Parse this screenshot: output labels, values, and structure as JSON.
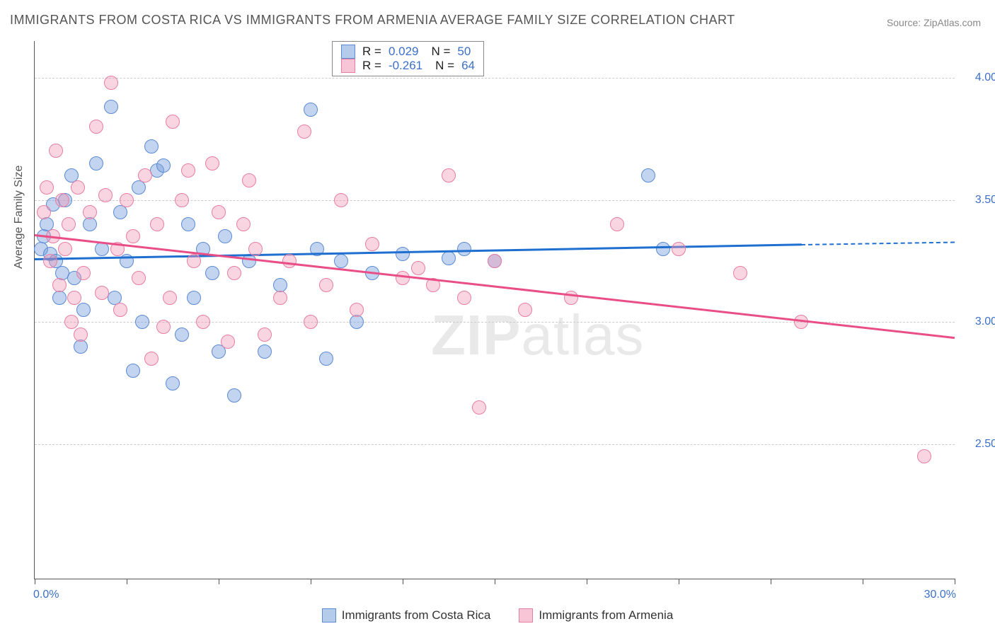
{
  "title": "IMMIGRANTS FROM COSTA RICA VS IMMIGRANTS FROM ARMENIA AVERAGE FAMILY SIZE CORRELATION CHART",
  "source": "Source: ZipAtlas.com",
  "watermark": "ZIPatlas",
  "y_axis_label": "Average Family Size",
  "chart": {
    "type": "scatter",
    "xlim": [
      0,
      30
    ],
    "ylim": [
      1.95,
      4.15
    ],
    "x_range_labels": {
      "min": "0.0%",
      "max": "30.0%"
    },
    "y_ticks": [
      2.5,
      3.0,
      3.5,
      4.0
    ],
    "x_tick_positions_pct": [
      0,
      10,
      20,
      30,
      40,
      50,
      60,
      70,
      80,
      90,
      100
    ],
    "grid_color": "#cccccc",
    "background_color": "#ffffff",
    "axis_color": "#555555",
    "tick_label_color": "#3b6fc9",
    "series": [
      {
        "name": "Immigrants from Costa Rica",
        "key": "costa_rica",
        "color_fill": "rgba(120,160,220,0.45)",
        "color_stroke": "#5b8bd4",
        "trend_color": "#1f6fd0",
        "R": "0.029",
        "N": "50",
        "trend": {
          "x1": 0,
          "y1": 3.26,
          "x2_solid": 25,
          "y2_solid": 3.32,
          "x2_dash": 30,
          "y2_dash": 3.33
        },
        "points": [
          [
            0.2,
            3.3
          ],
          [
            0.3,
            3.35
          ],
          [
            0.4,
            3.4
          ],
          [
            0.5,
            3.28
          ],
          [
            0.6,
            3.48
          ],
          [
            0.7,
            3.25
          ],
          [
            0.8,
            3.1
          ],
          [
            0.9,
            3.2
          ],
          [
            1.0,
            3.5
          ],
          [
            1.2,
            3.6
          ],
          [
            1.3,
            3.18
          ],
          [
            1.5,
            2.9
          ],
          [
            1.6,
            3.05
          ],
          [
            1.8,
            3.4
          ],
          [
            2.0,
            3.65
          ],
          [
            2.2,
            3.3
          ],
          [
            2.5,
            3.88
          ],
          [
            2.6,
            3.1
          ],
          [
            2.8,
            3.45
          ],
          [
            3.0,
            3.25
          ],
          [
            3.2,
            2.8
          ],
          [
            3.4,
            3.55
          ],
          [
            3.5,
            3.0
          ],
          [
            3.8,
            3.72
          ],
          [
            4.0,
            3.62
          ],
          [
            4.2,
            3.64
          ],
          [
            4.5,
            2.75
          ],
          [
            4.8,
            2.95
          ],
          [
            5.0,
            3.4
          ],
          [
            5.2,
            3.1
          ],
          [
            5.5,
            3.3
          ],
          [
            5.8,
            3.2
          ],
          [
            6.0,
            2.88
          ],
          [
            6.2,
            3.35
          ],
          [
            6.5,
            2.7
          ],
          [
            7.0,
            3.25
          ],
          [
            7.5,
            2.88
          ],
          [
            8.0,
            3.15
          ],
          [
            9.0,
            3.87
          ],
          [
            9.2,
            3.3
          ],
          [
            9.5,
            2.85
          ],
          [
            10.0,
            3.25
          ],
          [
            10.5,
            3.0
          ],
          [
            11.0,
            3.2
          ],
          [
            12.0,
            3.28
          ],
          [
            13.5,
            3.26
          ],
          [
            14.0,
            3.3
          ],
          [
            15.0,
            3.25
          ],
          [
            20.0,
            3.6
          ],
          [
            20.5,
            3.3
          ]
        ]
      },
      {
        "name": "Immigrants from Armenia",
        "key": "armenia",
        "color_fill": "rgba(240,150,180,0.40)",
        "color_stroke": "#e87da4",
        "trend_color": "#e94f86",
        "R": "-0.261",
        "N": "64",
        "trend": {
          "x1": 0,
          "y1": 3.36,
          "x2_solid": 30,
          "y2_solid": 2.94
        },
        "points": [
          [
            0.3,
            3.45
          ],
          [
            0.4,
            3.55
          ],
          [
            0.5,
            3.25
          ],
          [
            0.6,
            3.35
          ],
          [
            0.7,
            3.7
          ],
          [
            0.8,
            3.15
          ],
          [
            0.9,
            3.5
          ],
          [
            1.0,
            3.3
          ],
          [
            1.1,
            3.4
          ],
          [
            1.2,
            3.0
          ],
          [
            1.3,
            3.1
          ],
          [
            1.4,
            3.55
          ],
          [
            1.5,
            2.95
          ],
          [
            1.6,
            3.2
          ],
          [
            1.8,
            3.45
          ],
          [
            2.0,
            3.8
          ],
          [
            2.2,
            3.12
          ],
          [
            2.3,
            3.52
          ],
          [
            2.5,
            3.98
          ],
          [
            2.7,
            3.3
          ],
          [
            2.8,
            3.05
          ],
          [
            3.0,
            3.5
          ],
          [
            3.2,
            3.35
          ],
          [
            3.4,
            3.18
          ],
          [
            3.6,
            3.6
          ],
          [
            3.8,
            2.85
          ],
          [
            4.0,
            3.4
          ],
          [
            4.2,
            2.98
          ],
          [
            4.4,
            3.1
          ],
          [
            4.5,
            3.82
          ],
          [
            4.8,
            3.5
          ],
          [
            5.0,
            3.62
          ],
          [
            5.2,
            3.25
          ],
          [
            5.5,
            3.0
          ],
          [
            5.8,
            3.65
          ],
          [
            6.0,
            3.45
          ],
          [
            6.3,
            2.92
          ],
          [
            6.5,
            3.2
          ],
          [
            6.8,
            3.4
          ],
          [
            7.0,
            3.58
          ],
          [
            7.2,
            3.3
          ],
          [
            7.5,
            2.95
          ],
          [
            8.0,
            3.1
          ],
          [
            8.3,
            3.25
          ],
          [
            8.8,
            3.78
          ],
          [
            9.0,
            3.0
          ],
          [
            9.5,
            3.15
          ],
          [
            10.0,
            3.5
          ],
          [
            10.5,
            3.05
          ],
          [
            11.0,
            3.32
          ],
          [
            12.0,
            3.18
          ],
          [
            12.5,
            3.22
          ],
          [
            13.0,
            3.15
          ],
          [
            13.5,
            3.6
          ],
          [
            14.0,
            3.1
          ],
          [
            14.5,
            2.65
          ],
          [
            15.0,
            3.25
          ],
          [
            16.0,
            3.05
          ],
          [
            17.5,
            3.1
          ],
          [
            19.0,
            3.4
          ],
          [
            21.0,
            3.3
          ],
          [
            23.0,
            3.2
          ],
          [
            25.0,
            3.0
          ],
          [
            29.0,
            2.45
          ]
        ]
      }
    ]
  },
  "legend": {
    "costa_rica": "Immigrants from Costa Rica",
    "armenia": "Immigrants from Armenia"
  }
}
